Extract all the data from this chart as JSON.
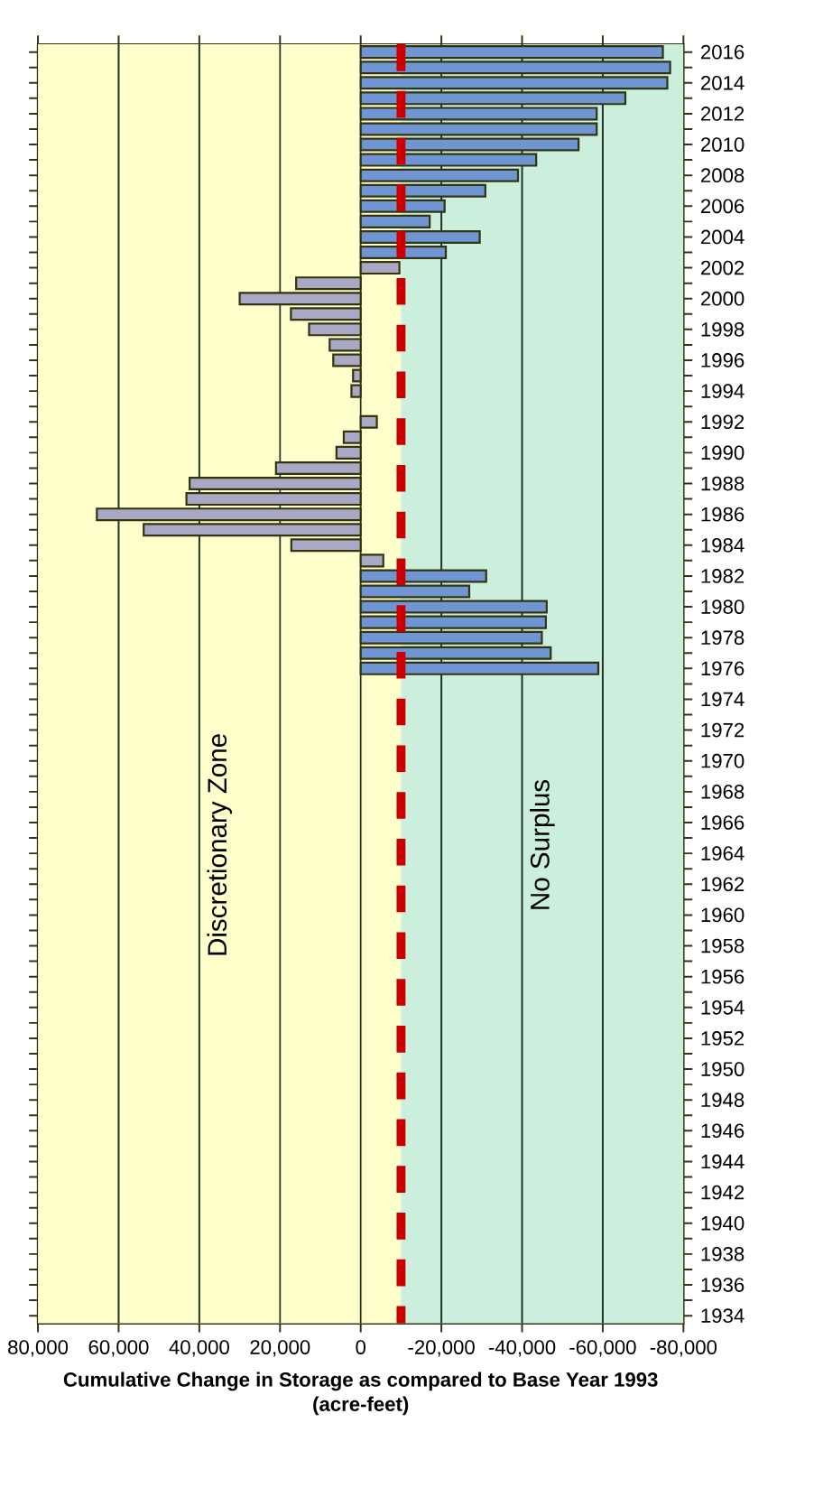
{
  "chart_data": {
    "type": "bar",
    "orientation": "horizontal",
    "xlabel": "Cumulative Change  in Storage as compared to Base Year 1993",
    "annotations": [
      "(acre-feet)"
    ],
    "categories": [
      "2016",
      null,
      "2014",
      null,
      "2012",
      null,
      "2010",
      null,
      "2008",
      null,
      "2006",
      null,
      "2004",
      null,
      "2002",
      null,
      "2000",
      null,
      "1998",
      null,
      "1996",
      null,
      "1994",
      null,
      "1992",
      null,
      "1990",
      null,
      "1988",
      null,
      "1986",
      null,
      "1984",
      null,
      "1982",
      null,
      "1980",
      null,
      "1978",
      null,
      "1976",
      null,
      "1974",
      null,
      "1972",
      null,
      "1970",
      null,
      "1968",
      null,
      "1966",
      null,
      "1964",
      null,
      "1962",
      null,
      "1960",
      null,
      "1958",
      null,
      "1956",
      null,
      "1954",
      null,
      "1952",
      null,
      "1950",
      null,
      "1948",
      null,
      "1946",
      null,
      "1944",
      null,
      "1942",
      null,
      "1940",
      null,
      "1938",
      null,
      "1936",
      null,
      "1934"
    ],
    "values": [
      -74900,
      -76700,
      -76000,
      -65600,
      -58500,
      -58500,
      -54000,
      -43500,
      -39000,
      -30900,
      -20800,
      -17100,
      -29500,
      -21100,
      -9600,
      16000,
      30000,
      17300,
      12800,
      7700,
      6800,
      1900,
      2300,
      null,
      -4000,
      4200,
      6000,
      21000,
      42400,
      43200,
      65400,
      53800,
      17200,
      -5600,
      -31100,
      -26900,
      -46100,
      -45900,
      -44900,
      -47100,
      -58900,
      null,
      null,
      null,
      null,
      null,
      null,
      null,
      null,
      null,
      null,
      null,
      null,
      null,
      null,
      null,
      null,
      null,
      null,
      null,
      null,
      null,
      null,
      null,
      null,
      null,
      null,
      null,
      null,
      null,
      null,
      null,
      null,
      null,
      null,
      null,
      null,
      null,
      null,
      null,
      null,
      null,
      null
    ],
    "colors": [
      "#6f96d2",
      "#6f96d2",
      "#6f96d2",
      "#6f96d2",
      "#6f96d2",
      "#6f96d2",
      "#6f96d2",
      "#6f96d2",
      "#6f96d2",
      "#6f96d2",
      "#6f96d2",
      "#6f96d2",
      "#6f96d2",
      "#6f96d2",
      "#a9a9c6",
      "#a9a9c6",
      "#a9a9c6",
      "#a9a9c6",
      "#a9a9c6",
      "#a9a9c6",
      "#a9a9c6",
      "#a9a9c6",
      "#a9a9c6",
      null,
      "#a9a9c6",
      "#a9a9c6",
      "#a9a9c6",
      "#a9a9c6",
      "#a9a9c6",
      "#a9a9c6",
      "#a9a9c6",
      "#a9a9c6",
      "#a9a9c6",
      "#a9a9c6",
      "#6f96d2",
      "#6f96d2",
      "#6f96d2",
      "#6f96d2",
      "#6f96d2",
      "#6f96d2",
      "#6f96d2",
      null,
      null,
      null,
      null,
      null,
      null,
      null,
      null,
      null,
      null,
      null,
      null,
      null,
      null,
      null,
      null,
      null,
      null,
      null,
      null,
      null,
      null,
      null,
      null,
      null,
      null,
      null,
      null,
      null,
      null,
      null,
      null,
      null,
      null,
      null,
      null,
      null,
      null,
      null,
      null,
      null,
      null
    ],
    "xlim": [
      80000,
      -80000
    ],
    "xticks": [
      {
        "value": 80000,
        "label": "80,000"
      },
      {
        "value": 60000,
        "label": "60,000"
      },
      {
        "value": 40000,
        "label": "40,000"
      },
      {
        "value": 20000,
        "label": "20,000"
      },
      0,
      {
        "value": -20000,
        "label": "-20,000"
      },
      {
        "value": -40000,
        "label": "-40,000"
      },
      {
        "value": -60000,
        "label": "-60,000"
      },
      {
        "value": -80000,
        "label": "-80,000"
      }
    ],
    "bands": [
      {
        "axis": "x",
        "from": 80000,
        "to": -10000,
        "label": "Discretionary Zone",
        "color": "#ffffcc"
      },
      {
        "axis": "x",
        "from": -10000,
        "to": -80000,
        "label": "No Surplus",
        "color": "#cceedd"
      }
    ],
    "ref_lines": [
      {
        "axis": "x",
        "value": -10000,
        "color": "#cc0000",
        "line_style": "dashed"
      }
    ],
    "grid": "x"
  }
}
